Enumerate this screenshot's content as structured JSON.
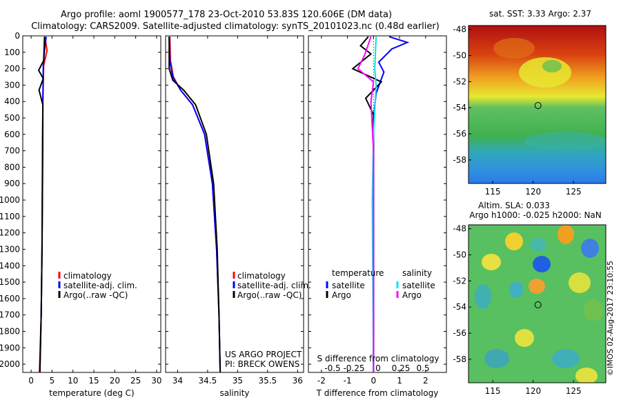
{
  "header": {
    "line1": "Argo profile: aoml 1900577_178 23-Oct-2010 53.83S 120.606E (DM data)",
    "line2": "Climatology: CARS2009. Satellite-adjusted climatology: synTS_20101023.nc (0.48d earlier)"
  },
  "credit": "©IMOS 02-Aug-2017 23:10:55",
  "project": {
    "line1": "US ARGO PROJECT",
    "line2": "PI: BRECK OWENS"
  },
  "colors": {
    "climatology": "#ff0000",
    "satellite": "#0000ff",
    "argo": "#000000",
    "sat_salinity": "#00e5ee",
    "argo_salinity": "#ff00ff"
  },
  "chart_data": [
    {
      "type": "line",
      "id": "temperature",
      "xlabel": "temperature (deg C)",
      "xlim": [
        -2,
        31
      ],
      "ylim": [
        2050,
        0
      ],
      "xticks": [
        0,
        5,
        10,
        15,
        20,
        25,
        30
      ],
      "yticks": [
        0,
        100,
        200,
        300,
        400,
        500,
        600,
        700,
        800,
        900,
        1000,
        1100,
        1200,
        1300,
        1400,
        1500,
        1600,
        1700,
        1800,
        1900,
        2000
      ],
      "legend": [
        "climatology",
        "satellite-adj. clim.",
        "Argo(..raw -QC)"
      ],
      "series": [
        {
          "name": "climatology",
          "color": "#ff0000",
          "points": [
            [
              3.3,
              5
            ],
            [
              3.8,
              90
            ],
            [
              3.0,
              180
            ],
            [
              2.8,
              400
            ],
            [
              2.7,
              800
            ],
            [
              2.6,
              1300
            ],
            [
              2.4,
              1700
            ],
            [
              2.0,
              2050
            ]
          ]
        },
        {
          "name": "satellite-adj. clim.",
          "color": "#0000ff",
          "points": [
            [
              3.6,
              5
            ],
            [
              3.2,
              90
            ],
            [
              2.9,
              180
            ],
            [
              2.8,
              400
            ],
            [
              2.7,
              800
            ],
            [
              2.6,
              1300
            ],
            [
              2.4,
              1700
            ],
            [
              2.1,
              2050
            ]
          ]
        },
        {
          "name": "Argo(..raw -QC)",
          "color": "#000000",
          "points": [
            [
              3.2,
              5
            ],
            [
              3.0,
              150
            ],
            [
              1.8,
              210
            ],
            [
              2.9,
              260
            ],
            [
              1.9,
              330
            ],
            [
              2.8,
              420
            ],
            [
              2.75,
              800
            ],
            [
              2.6,
              1300
            ],
            [
              2.4,
              1700
            ],
            [
              2.1,
              2050
            ]
          ]
        }
      ]
    },
    {
      "type": "line",
      "id": "salinity",
      "xlabel": "salinity",
      "xlim": [
        33.8,
        36.1
      ],
      "ylim": [
        2050,
        0
      ],
      "xticks": [
        34,
        34.5,
        35,
        35.5,
        36
      ],
      "xticklabels": [
        "34",
        "34.5",
        "35",
        "35.5",
        "36"
      ],
      "legend": [
        "climatology",
        "satellite-adj. clim.",
        "Argo(..raw -QC)"
      ],
      "series": [
        {
          "name": "climatology",
          "color": "#ff0000",
          "points": [
            [
              33.87,
              5
            ],
            [
              33.88,
              150
            ],
            [
              33.93,
              250
            ],
            [
              34.05,
              330
            ],
            [
              34.25,
              420
            ],
            [
              34.45,
              600
            ],
            [
              34.58,
              900
            ],
            [
              34.65,
              1300
            ],
            [
              34.69,
              1700
            ],
            [
              34.71,
              2050
            ]
          ]
        },
        {
          "name": "satellite-adj. clim.",
          "color": "#0000ff",
          "points": [
            [
              33.86,
              5
            ],
            [
              33.87,
              150
            ],
            [
              33.92,
              250
            ],
            [
              34.05,
              330
            ],
            [
              34.25,
              420
            ],
            [
              34.45,
              600
            ],
            [
              34.58,
              900
            ],
            [
              34.65,
              1300
            ],
            [
              34.69,
              1700
            ],
            [
              34.71,
              2050
            ]
          ]
        },
        {
          "name": "Argo(..raw -QC)",
          "color": "#000000",
          "points": [
            [
              33.86,
              5
            ],
            [
              33.86,
              200
            ],
            [
              33.92,
              270
            ],
            [
              34.1,
              330
            ],
            [
              34.3,
              420
            ],
            [
              34.48,
              600
            ],
            [
              34.6,
              900
            ],
            [
              34.66,
              1300
            ],
            [
              34.69,
              1700
            ],
            [
              34.71,
              2050
            ]
          ]
        }
      ]
    },
    {
      "type": "line",
      "id": "difference",
      "xlabel": "T difference from climatology",
      "xlabel_top": "S difference from climatology",
      "xlim": [
        -2.5,
        2.8
      ],
      "ylim": [
        2050,
        0
      ],
      "xticks": [
        -2,
        -1,
        0,
        1,
        2
      ],
      "top_ticks": [
        -0.5,
        -0.25,
        0,
        0.25,
        0.5
      ],
      "legend_titles": [
        "temperature",
        "salinity"
      ],
      "legend": [
        "satellite",
        "Argo",
        "satellite",
        "Argo"
      ],
      "series": [
        {
          "name": "temperature satellite",
          "color": "#0000ff",
          "points": [
            [
              0.6,
              5
            ],
            [
              1.3,
              40
            ],
            [
              0.7,
              80
            ],
            [
              0.2,
              160
            ],
            [
              0.4,
              220
            ],
            [
              0.1,
              350
            ],
            [
              0,
              500
            ],
            [
              0,
              2050
            ]
          ]
        },
        {
          "name": "temperature Argo",
          "color": "#000000",
          "points": [
            [
              -0.2,
              5
            ],
            [
              -0.5,
              60
            ],
            [
              -0.1,
              110
            ],
            [
              -0.8,
              200
            ],
            [
              0.3,
              280
            ],
            [
              -0.3,
              380
            ],
            [
              0,
              480
            ],
            [
              0,
              2050
            ]
          ]
        },
        {
          "name": "salinity satellite",
          "color": "#00e5ee",
          "points": [
            [
              0.1,
              5
            ],
            [
              0.05,
              200
            ],
            [
              0.1,
              300
            ],
            [
              0,
              600
            ],
            [
              -0.05,
              1000
            ],
            [
              0,
              2050
            ]
          ]
        },
        {
          "name": "salinity Argo",
          "color": "#ff00ff",
          "points": [
            [
              -0.1,
              5
            ],
            [
              -0.35,
              120
            ],
            [
              -0.6,
              200
            ],
            [
              0,
              280
            ],
            [
              -0.1,
              400
            ],
            [
              0,
              700
            ],
            [
              0,
              2050
            ]
          ]
        }
      ]
    },
    {
      "type": "heatmap",
      "id": "sst_map",
      "title": "sat. SST: 3.33 Argo: 2.37",
      "xlim": [
        112,
        129
      ],
      "ylim": [
        -59.8,
        -47.7
      ],
      "xticks": [
        115,
        120,
        125
      ],
      "yticks": [
        -48,
        -50,
        -52,
        -54,
        -56,
        -58
      ],
      "marker": [
        120.6,
        -53.83
      ]
    },
    {
      "type": "heatmap",
      "id": "sla_map",
      "title_line1": "Altim. SLA: 0.033",
      "title_line2": "Argo h1000: -0.025 h2000: NaN",
      "xlim": [
        112,
        129
      ],
      "ylim": [
        -59.8,
        -47.7
      ],
      "xticks": [
        115,
        120,
        125
      ],
      "yticks": [
        -48,
        -50,
        -52,
        -54,
        -56,
        -58
      ],
      "marker": [
        120.6,
        -53.83
      ]
    }
  ]
}
